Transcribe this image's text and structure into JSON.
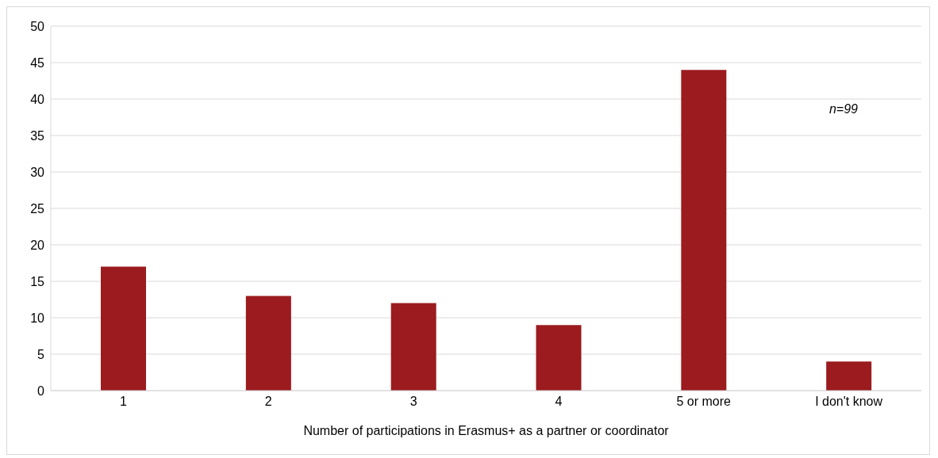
{
  "chart_data": {
    "type": "bar",
    "xlabel": "Number of participations in Erasmus+ as a partner or coordinator",
    "categories": [
      "1",
      "2",
      "3",
      "4",
      "5 or more",
      "I don't know"
    ],
    "values": [
      17,
      13,
      12,
      9,
      44,
      4
    ],
    "color": "#9b1b1e",
    "ylim": [
      0,
      50
    ],
    "yticks": [
      0,
      5,
      10,
      15,
      20,
      25,
      30,
      35,
      40,
      45,
      50
    ],
    "grid": "y",
    "annotations": [
      "n=99"
    ]
  }
}
